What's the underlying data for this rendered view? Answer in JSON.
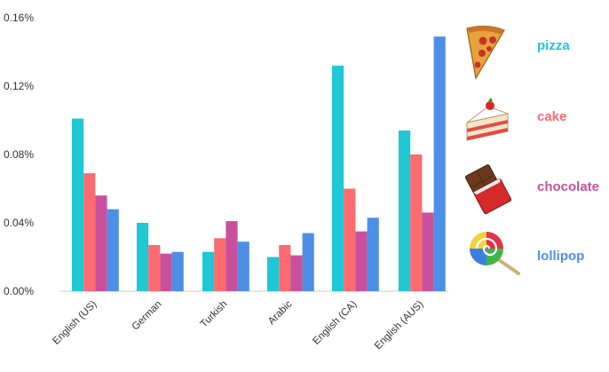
{
  "chart_data": {
    "type": "bar",
    "categories": [
      "English (US)",
      "German",
      "Turkish",
      "Arabic",
      "English (CA)",
      "English (AUS)"
    ],
    "series": [
      {
        "name": "pizza",
        "color": "#1EC8D4",
        "icon": "pizza-icon",
        "values": [
          0.101,
          0.04,
          0.023,
          0.02,
          0.132,
          0.094
        ]
      },
      {
        "name": "cake",
        "color": "#FB6B6F",
        "icon": "cake-icon",
        "values": [
          0.069,
          0.027,
          0.031,
          0.027,
          0.06,
          0.08
        ]
      },
      {
        "name": "chocolate",
        "color": "#C9509C",
        "icon": "chocolate-icon",
        "values": [
          0.056,
          0.022,
          0.041,
          0.021,
          0.035,
          0.046
        ]
      },
      {
        "name": "lollipop",
        "color": "#4E8FE6",
        "icon": "lollipop-icon",
        "values": [
          0.048,
          0.023,
          0.029,
          0.034,
          0.043,
          0.149
        ]
      }
    ],
    "yticks": [
      "0.00%",
      "0.04%",
      "0.08%",
      "0.12%",
      "0.16%"
    ],
    "ylim": [
      0,
      0.16
    ],
    "title": "",
    "xlabel": "",
    "ylabel": "",
    "grid": false,
    "legend_position": "right"
  }
}
